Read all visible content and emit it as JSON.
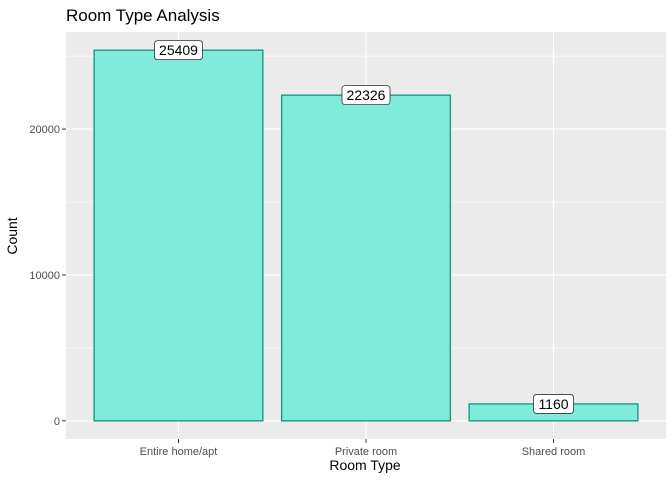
{
  "chart_data": {
    "type": "bar",
    "title": "Room Type Analysis",
    "xlabel": "Room Type",
    "ylabel": "Count",
    "categories": [
      "Entire home/apt",
      "Private room",
      "Shared room"
    ],
    "values": [
      25409,
      22326,
      1160
    ],
    "value_labels": [
      "25409",
      "22326",
      "1160"
    ],
    "y_ticks": [
      0,
      10000,
      20000
    ],
    "y_tick_labels": [
      "0",
      "10000",
      "20000"
    ],
    "ylim": [
      -1245,
      26654
    ],
    "grid": true,
    "legend": "none",
    "colors": {
      "bar_fill": "#7FEBDA",
      "bar_stroke": "#14917F",
      "panel_bg": "#EBEBEB",
      "grid": "#FFFFFF"
    }
  }
}
